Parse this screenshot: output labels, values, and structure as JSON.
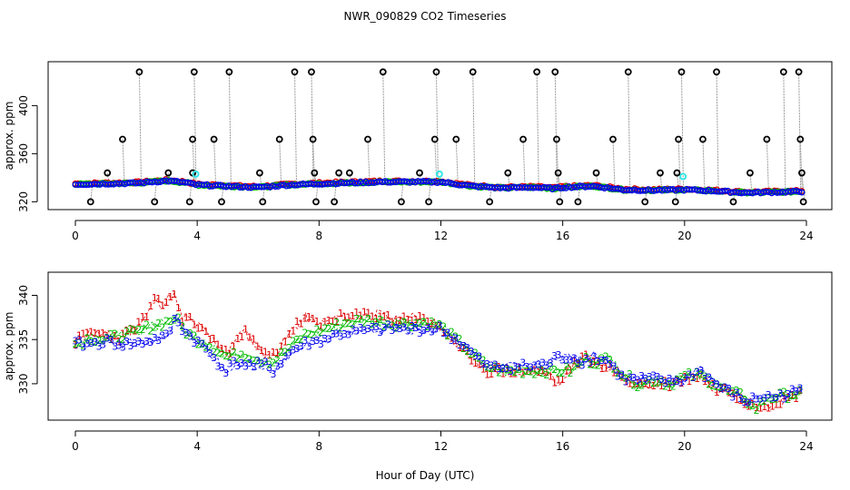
{
  "figure": {
    "title": "NWR_090829  CO2 Timeseries",
    "xlabel": "Hour of Day (UTC)"
  },
  "chart_data": [
    {
      "type": "scatter",
      "id": "top",
      "ylabel": "approx. ppm",
      "xlim": [
        0,
        24
      ],
      "ylim": [
        318,
        432
      ],
      "xticks": [
        0,
        4,
        8,
        12,
        16,
        20,
        24
      ],
      "yticks": [
        320,
        360,
        400
      ],
      "colors": {
        "s1": "#dd0000",
        "s2": "#00bb00",
        "s3": "#0000ee",
        "spike": "#000000",
        "cyan": "#33e6e6",
        "drop": "#999999"
      },
      "baseline": [
        [
          0,
          334.5
        ],
        [
          1,
          335
        ],
        [
          2,
          335.5
        ],
        [
          3,
          337.5
        ],
        [
          3.6,
          336
        ],
        [
          4,
          334
        ],
        [
          5,
          333
        ],
        [
          6,
          332
        ],
        [
          7,
          334
        ],
        [
          8,
          335
        ],
        [
          10,
          336.5
        ],
        [
          12,
          336.5
        ],
        [
          13,
          333
        ],
        [
          14,
          331.5
        ],
        [
          15,
          332
        ],
        [
          15.8,
          331
        ],
        [
          16,
          332
        ],
        [
          17,
          333
        ],
        [
          18,
          330
        ],
        [
          19,
          329.5
        ],
        [
          20,
          330
        ],
        [
          21,
          329
        ],
        [
          22,
          327.5
        ],
        [
          23,
          328
        ],
        [
          23.8,
          328.5
        ]
      ],
      "spikes": [
        [
          0.5,
          320
        ],
        [
          1.05,
          344
        ],
        [
          1.55,
          372
        ],
        [
          2.1,
          428
        ],
        [
          2.6,
          320
        ],
        [
          3.05,
          344
        ],
        [
          3.75,
          320
        ],
        [
          3.85,
          344
        ],
        [
          3.85,
          372
        ],
        [
          3.9,
          428
        ],
        [
          4.55,
          372
        ],
        [
          4.8,
          320
        ],
        [
          5.05,
          428
        ],
        [
          6.05,
          344
        ],
        [
          6.15,
          320
        ],
        [
          6.7,
          372
        ],
        [
          7.2,
          428
        ],
        [
          7.75,
          428
        ],
        [
          7.8,
          372
        ],
        [
          7.85,
          344
        ],
        [
          7.9,
          320
        ],
        [
          8.5,
          320
        ],
        [
          8.65,
          344
        ],
        [
          9.0,
          344
        ],
        [
          9.6,
          372
        ],
        [
          10.1,
          428
        ],
        [
          10.7,
          320
        ],
        [
          11.3,
          344
        ],
        [
          11.6,
          320
        ],
        [
          11.8,
          372
        ],
        [
          11.85,
          428
        ],
        [
          12.5,
          372
        ],
        [
          13.05,
          428
        ],
        [
          13.6,
          320
        ],
        [
          14.2,
          344
        ],
        [
          14.7,
          372
        ],
        [
          15.15,
          428
        ],
        [
          15.75,
          428
        ],
        [
          15.8,
          372
        ],
        [
          15.85,
          344
        ],
        [
          15.9,
          320
        ],
        [
          16.5,
          320
        ],
        [
          17.1,
          344
        ],
        [
          17.65,
          372
        ],
        [
          18.15,
          428
        ],
        [
          18.7,
          320
        ],
        [
          19.2,
          344
        ],
        [
          19.7,
          320
        ],
        [
          19.75,
          344
        ],
        [
          19.8,
          372
        ],
        [
          19.9,
          428
        ],
        [
          20.6,
          372
        ],
        [
          21.05,
          428
        ],
        [
          21.6,
          320
        ],
        [
          22.15,
          344
        ],
        [
          22.7,
          372
        ],
        [
          23.25,
          428
        ],
        [
          23.75,
          428
        ],
        [
          23.8,
          372
        ],
        [
          23.85,
          344
        ],
        [
          23.9,
          320
        ]
      ],
      "cyan_points": [
        [
          3.95,
          343
        ],
        [
          11.95,
          343
        ],
        [
          19.95,
          341
        ]
      ]
    },
    {
      "type": "line",
      "id": "bottom",
      "ylabel": "approx. ppm",
      "xlim": [
        0,
        24
      ],
      "ylim": [
        326.5,
        342
      ],
      "xticks": [
        0,
        4,
        8,
        12,
        16,
        20,
        24
      ],
      "yticks": [
        330,
        335,
        340
      ],
      "series": [
        {
          "name": "1",
          "color": "#dd0000",
          "label": "1",
          "points": [
            [
              0,
              334.8
            ],
            [
              0.5,
              335.8
            ],
            [
              1,
              335.5
            ],
            [
              1.5,
              335.2
            ],
            [
              2,
              336.5
            ],
            [
              2.3,
              337.5
            ],
            [
              2.6,
              339.3
            ],
            [
              2.9,
              339
            ],
            [
              3.2,
              340.3
            ],
            [
              3.5,
              337.5
            ],
            [
              3.8,
              337.2
            ],
            [
              4.2,
              336
            ],
            [
              4.5,
              335.2
            ],
            [
              4.8,
              334
            ],
            [
              5,
              333.2
            ],
            [
              5.3,
              335.5
            ],
            [
              5.6,
              335.8
            ],
            [
              6,
              334
            ],
            [
              6.4,
              333
            ],
            [
              6.8,
              334.5
            ],
            [
              7.2,
              336.5
            ],
            [
              7.6,
              337.5
            ],
            [
              8,
              336.5
            ],
            [
              8.5,
              337.5
            ],
            [
              9,
              337.5
            ],
            [
              9.5,
              337.8
            ],
            [
              10,
              337.8
            ],
            [
              10.5,
              337.2
            ],
            [
              11,
              337.5
            ],
            [
              11.5,
              337.2
            ],
            [
              12,
              336.5
            ],
            [
              12.3,
              335
            ],
            [
              12.6,
              334
            ],
            [
              13,
              333
            ],
            [
              13.5,
              331.5
            ],
            [
              14,
              331.5
            ],
            [
              14.5,
              331.5
            ],
            [
              15,
              331.5
            ],
            [
              15.5,
              331.2
            ],
            [
              15.8,
              330
            ],
            [
              16.3,
              332
            ],
            [
              16.7,
              333
            ],
            [
              17,
              332.5
            ],
            [
              17.5,
              332
            ],
            [
              18,
              330.5
            ],
            [
              18.5,
              330
            ],
            [
              19,
              330
            ],
            [
              19.5,
              330
            ],
            [
              20,
              330.5
            ],
            [
              20.5,
              331
            ],
            [
              21,
              329.5
            ],
            [
              21.5,
              329.2
            ],
            [
              22,
              328
            ],
            [
              22.5,
              327.5
            ],
            [
              23,
              328
            ],
            [
              23.5,
              328.5
            ],
            [
              23.8,
              329
            ]
          ]
        },
        {
          "name": "2",
          "color": "#00bb00",
          "label": "2",
          "points": [
            [
              0,
              334.5
            ],
            [
              0.5,
              335.2
            ],
            [
              1,
              335
            ],
            [
              1.5,
              335.5
            ],
            [
              2,
              335.8
            ],
            [
              2.5,
              336.5
            ],
            [
              3,
              337
            ],
            [
              3.3,
              337.5
            ],
            [
              3.6,
              336
            ],
            [
              4,
              335
            ],
            [
              4.5,
              334.2
            ],
            [
              5,
              333
            ],
            [
              5.5,
              333.5
            ],
            [
              6,
              332.8
            ],
            [
              6.5,
              332.5
            ],
            [
              7,
              334
            ],
            [
              7.5,
              335.5
            ],
            [
              8,
              336
            ],
            [
              8.5,
              336.5
            ],
            [
              9,
              337
            ],
            [
              9.5,
              337.2
            ],
            [
              10,
              337
            ],
            [
              10.5,
              336.8
            ],
            [
              11,
              336.8
            ],
            [
              11.5,
              337
            ],
            [
              12,
              336.5
            ],
            [
              12.5,
              335
            ],
            [
              13,
              333.5
            ],
            [
              13.5,
              332
            ],
            [
              14,
              331.5
            ],
            [
              14.5,
              331.5
            ],
            [
              15,
              331.5
            ],
            [
              15.5,
              331.5
            ],
            [
              15.8,
              331.5
            ],
            [
              16.3,
              331.5
            ],
            [
              16.7,
              332.8
            ],
            [
              17,
              332.5
            ],
            [
              17.5,
              332.8
            ],
            [
              18,
              331
            ],
            [
              18.5,
              330
            ],
            [
              19,
              330.5
            ],
            [
              19.5,
              330
            ],
            [
              20,
              330.8
            ],
            [
              20.5,
              331
            ],
            [
              21,
              330
            ],
            [
              21.5,
              329
            ],
            [
              22,
              328.5
            ],
            [
              22.3,
              327
            ],
            [
              22.7,
              328.5
            ],
            [
              23,
              328.5
            ],
            [
              23.5,
              328.8
            ],
            [
              23.8,
              329
            ]
          ]
        },
        {
          "name": "3",
          "color": "#0000ee",
          "label": "3",
          "points": [
            [
              0,
              334.5
            ],
            [
              0.5,
              334.5
            ],
            [
              1,
              334.8
            ],
            [
              1.5,
              334.5
            ],
            [
              2,
              334.5
            ],
            [
              2.5,
              335
            ],
            [
              3,
              335.3
            ],
            [
              3.3,
              337.5
            ],
            [
              3.6,
              335.8
            ],
            [
              4,
              334.8
            ],
            [
              4.5,
              333.2
            ],
            [
              4.9,
              331.5
            ],
            [
              5.3,
              332.5
            ],
            [
              5.8,
              332
            ],
            [
              6.2,
              332.2
            ],
            [
              6.5,
              331.5
            ],
            [
              7,
              333.5
            ],
            [
              7.5,
              334.5
            ],
            [
              8,
              334.8
            ],
            [
              8.5,
              335.5
            ],
            [
              9,
              335.8
            ],
            [
              9.5,
              336
            ],
            [
              10,
              336.2
            ],
            [
              10.5,
              336.2
            ],
            [
              11,
              336.2
            ],
            [
              11.5,
              336.2
            ],
            [
              12,
              336.2
            ],
            [
              12.5,
              335
            ],
            [
              13,
              333.5
            ],
            [
              13.5,
              332
            ],
            [
              14,
              331.8
            ],
            [
              14.5,
              332
            ],
            [
              15,
              332
            ],
            [
              15.5,
              332.2
            ],
            [
              15.8,
              333
            ],
            [
              16.3,
              333
            ],
            [
              16.7,
              332.5
            ],
            [
              17,
              333
            ],
            [
              17.5,
              332.5
            ],
            [
              18,
              330.5
            ],
            [
              18.5,
              330.5
            ],
            [
              19,
              330.5
            ],
            [
              19.5,
              330.2
            ],
            [
              20,
              330.5
            ],
            [
              20.5,
              331.5
            ],
            [
              21,
              330
            ],
            [
              21.5,
              329
            ],
            [
              22,
              328
            ],
            [
              22.5,
              328.5
            ],
            [
              23,
              328.5
            ],
            [
              23.5,
              329
            ],
            [
              23.8,
              329.2
            ]
          ]
        }
      ]
    }
  ]
}
